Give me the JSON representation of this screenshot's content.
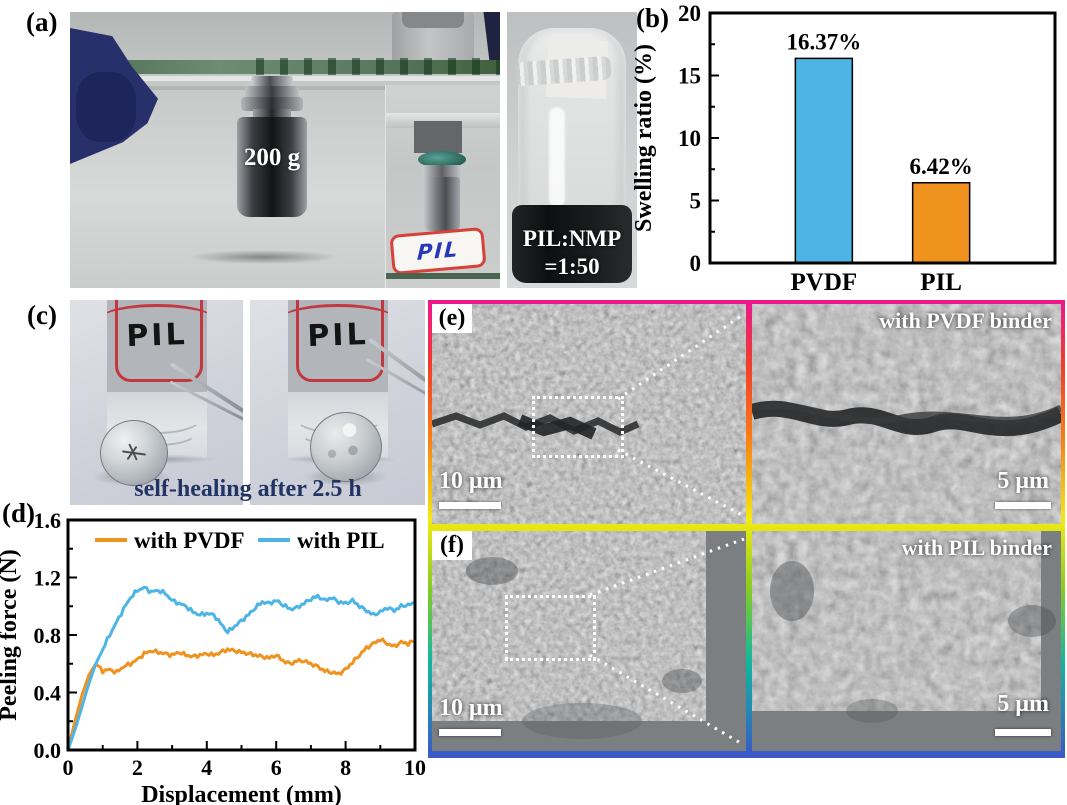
{
  "figure": {
    "panel_a": {
      "label": "(a)",
      "weight_text": "200 g",
      "inset_sample_label": "PIL",
      "vial_caption_line1": "PIL:NMP",
      "vial_caption_line2": "=1:50"
    },
    "panel_b": {
      "label": "(b)"
    },
    "panel_c": {
      "label": "(c)",
      "bottle_label": "PIL",
      "caption": "self-healing after 2.5 h"
    },
    "panel_d": {
      "label": "(d)"
    },
    "panel_e": {
      "label": "(e)",
      "annotation": "with PVDF binder",
      "scale_bar_left": "10 μm",
      "scale_bar_right": "5 μm"
    },
    "panel_f": {
      "label": "(f)",
      "annotation": "with PIL binder",
      "scale_bar_left": "10 μm",
      "scale_bar_right": "5 μm"
    }
  },
  "colors": {
    "pvdf_orange": "#f0921e",
    "pil_blue": "#4db4e6",
    "caption_navy": "#223463",
    "frame_rainbow": [
      "#ee1690",
      "#f03c2c",
      "#f97d15",
      "#f2ea12",
      "#86cc21",
      "#0fb89e",
      "#3b57c9"
    ]
  },
  "chart_data": [
    {
      "id": "b",
      "type": "bar",
      "title": "",
      "categories": [
        "PVDF",
        "PIL"
      ],
      "values": [
        16.37,
        6.42
      ],
      "bar_labels": [
        "16.37%",
        "6.42%"
      ],
      "bar_colors": [
        "#4db4e6",
        "#f0921e"
      ],
      "xlabel": "",
      "ylabel": "Swelling ratio (%)",
      "ylim": [
        0,
        20
      ],
      "yticks": [
        0,
        5,
        10,
        15,
        20
      ],
      "yminor_step": 2.5,
      "grid": false,
      "legend_position": "none"
    },
    {
      "id": "d",
      "type": "line",
      "title": "",
      "xlabel": "Displacement (mm)",
      "ylabel": "Peeling force (N)",
      "xlim": [
        0,
        10
      ],
      "ylim": [
        0,
        1.6
      ],
      "xticks": [
        0,
        2,
        4,
        6,
        8,
        10
      ],
      "yticks": [
        0.0,
        0.4,
        0.8,
        1.2,
        1.6
      ],
      "xminor_step": 1,
      "yminor_step": 0.2,
      "grid": false,
      "legend_position": "top-inside",
      "series": [
        {
          "name": "with PVDF",
          "color": "#f0921e",
          "x0": 0,
          "dx": 0.2,
          "y": [
            0.0,
            0.2,
            0.38,
            0.52,
            0.6,
            0.55,
            0.56,
            0.54,
            0.58,
            0.6,
            0.63,
            0.67,
            0.69,
            0.68,
            0.67,
            0.66,
            0.68,
            0.66,
            0.65,
            0.66,
            0.67,
            0.66,
            0.68,
            0.7,
            0.69,
            0.68,
            0.67,
            0.66,
            0.65,
            0.64,
            0.66,
            0.62,
            0.6,
            0.62,
            0.62,
            0.6,
            0.58,
            0.55,
            0.54,
            0.53,
            0.56,
            0.61,
            0.66,
            0.71,
            0.74,
            0.77,
            0.74,
            0.72,
            0.75,
            0.74,
            0.76
          ]
        },
        {
          "name": "with PIL",
          "color": "#4db4e6",
          "x0": 0,
          "dx": 0.2,
          "y": [
            0.0,
            0.14,
            0.3,
            0.46,
            0.6,
            0.7,
            0.8,
            0.89,
            0.98,
            1.06,
            1.11,
            1.13,
            1.1,
            1.11,
            1.09,
            1.04,
            1.02,
            1.0,
            0.96,
            0.94,
            0.95,
            0.94,
            0.88,
            0.82,
            0.86,
            0.9,
            0.94,
            0.99,
            1.03,
            1.02,
            1.04,
            1.01,
            0.98,
            0.99,
            1.02,
            1.05,
            1.07,
            1.04,
            1.06,
            1.03,
            1.02,
            1.04,
            1.0,
            0.97,
            0.94,
            0.96,
            0.99,
            0.97,
            1.0,
            1.01,
            1.02
          ]
        }
      ]
    }
  ]
}
